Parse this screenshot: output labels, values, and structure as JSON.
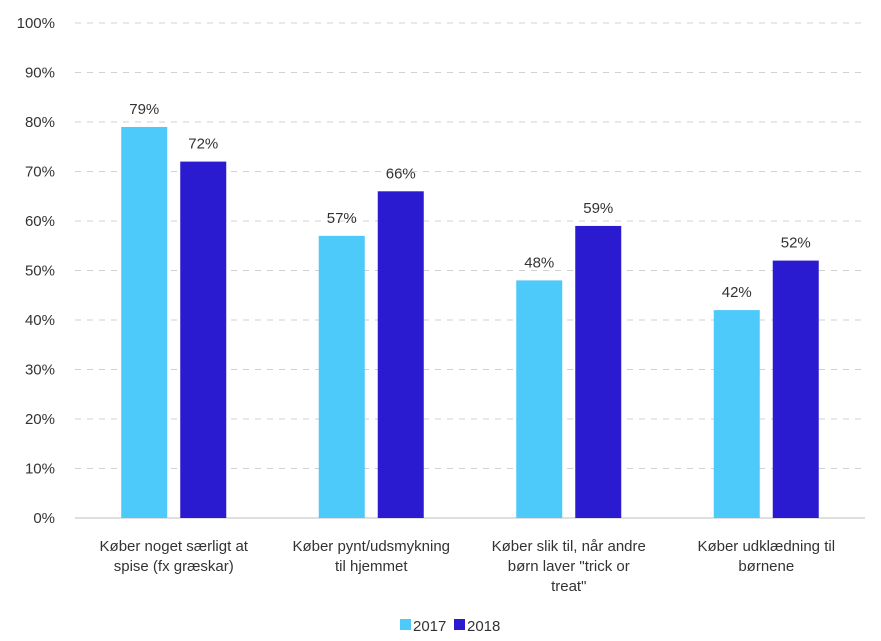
{
  "chart_data": {
    "type": "bar",
    "categories": [
      "Køber noget særligt at spise (fx græskar)",
      "Køber pynt/udsmykning til hjemmet",
      "Køber slik til, når andre børn laver \"trick or treat\"",
      "Køber udklædning til børnene"
    ],
    "category_lines": [
      [
        "Køber noget særligt at",
        "spise (fx græskar)"
      ],
      [
        "Køber pynt/udsmykning",
        "til hjemmet"
      ],
      [
        "Køber slik til, når andre",
        "børn laver \"trick or",
        "treat\""
      ],
      [
        "Køber udklædning til",
        "børnene"
      ]
    ],
    "series": [
      {
        "name": "2017",
        "color": "#4dc9fa",
        "values": [
          79,
          57,
          48,
          42
        ]
      },
      {
        "name": "2018",
        "color": "#2a1ad0",
        "values": [
          72,
          66,
          59,
          52
        ]
      }
    ],
    "data_labels": [
      [
        "79%",
        "57%",
        "48%",
        "42%"
      ],
      [
        "72%",
        "66%",
        "59%",
        "52%"
      ]
    ],
    "y_ticks": [
      "0%",
      "10%",
      "20%",
      "30%",
      "40%",
      "50%",
      "60%",
      "70%",
      "80%",
      "90%",
      "100%"
    ],
    "ylim": [
      0,
      100
    ],
    "grid": true,
    "legend_position": "bottom-center",
    "title": "",
    "xlabel": "",
    "ylabel": ""
  }
}
